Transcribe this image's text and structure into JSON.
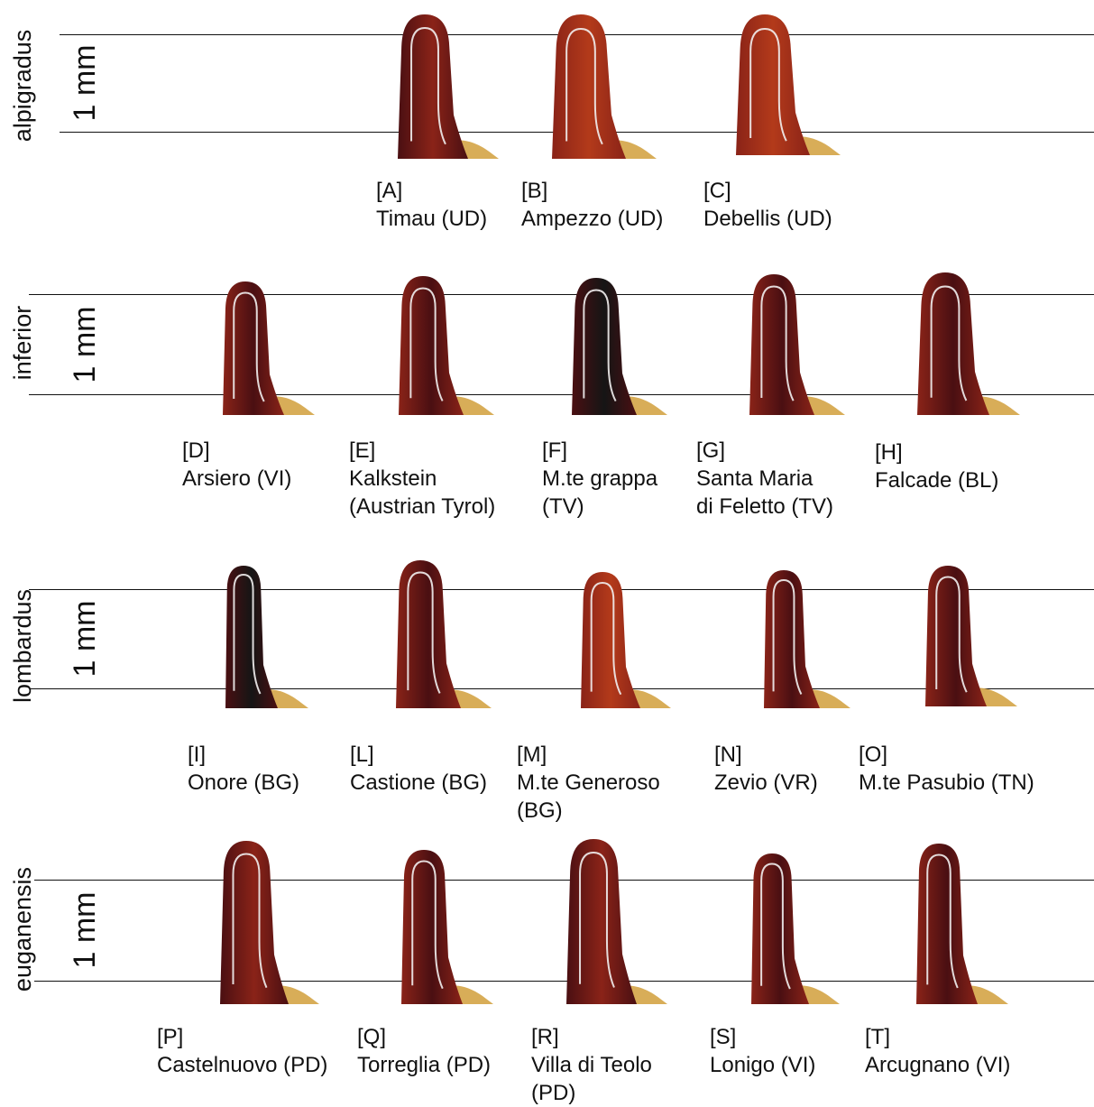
{
  "figure": {
    "colors": {
      "background": "#ffffff",
      "reference_line": "#111111",
      "specimen_dark": "#4a0f12",
      "specimen_mid": "#8a2318",
      "specimen_reddish": "#b33a1a",
      "specimen_black": "#151515",
      "base_tissue": "#d6a94f",
      "highlight": "#f2f0f0"
    },
    "rows": [
      {
        "species": "alpigradus",
        "scale": "1 mm",
        "specimens": [
          {
            "id": "[A]",
            "locality": [
              "Timau (UD)"
            ],
            "tone": "mid"
          },
          {
            "id": "[B]",
            "locality": [
              "Ampezzo (UD)"
            ],
            "tone": "reddish"
          },
          {
            "id": "[C]",
            "locality": [
              "Debellis (UD)"
            ],
            "tone": "reddish"
          }
        ]
      },
      {
        "species": "inferior",
        "scale": "1 mm",
        "specimens": [
          {
            "id": "[D]",
            "locality": [
              "Arsiero (VI)"
            ],
            "tone": "dark"
          },
          {
            "id": "[E]",
            "locality": [
              "Kalkstein",
              "(Austrian Tyrol)"
            ],
            "tone": "dark"
          },
          {
            "id": "[F]",
            "locality": [
              "M.te grappa",
              "(TV)"
            ],
            "tone": "black"
          },
          {
            "id": "[G]",
            "locality": [
              "Santa Maria",
              "di Feletto (TV)"
            ],
            "tone": "dark"
          },
          {
            "id": "[H]",
            "locality": [
              "Falcade (BL)"
            ],
            "tone": "dark"
          }
        ]
      },
      {
        "species": "lombardus",
        "scale": "1 mm",
        "specimens": [
          {
            "id": "[I]",
            "locality": [
              "Onore (BG)"
            ],
            "tone": "black"
          },
          {
            "id": "[L]",
            "locality": [
              "Castione (BG)"
            ],
            "tone": "dark"
          },
          {
            "id": "[M]",
            "locality": [
              "M.te Generoso",
              "(BG)"
            ],
            "tone": "reddish"
          },
          {
            "id": "[N]",
            "locality": [
              "Zevio (VR)"
            ],
            "tone": "dark"
          },
          {
            "id": "[O]",
            "locality": [
              "M.te Pasubio (TN)"
            ],
            "tone": "dark"
          }
        ]
      },
      {
        "species": "euganensis",
        "scale": "1 mm",
        "specimens": [
          {
            "id": "[P]",
            "locality": [
              "Castelnuovo (PD)"
            ],
            "tone": "mid"
          },
          {
            "id": "[Q]",
            "locality": [
              "Torreglia (PD)"
            ],
            "tone": "dark"
          },
          {
            "id": "[R]",
            "locality": [
              "Villa di Teolo",
              "(PD)"
            ],
            "tone": "mid"
          },
          {
            "id": "[S]",
            "locality": [
              "Lonigo (VI)"
            ],
            "tone": "dark"
          },
          {
            "id": "[T]",
            "locality": [
              "Arcugnano (VI)"
            ],
            "tone": "dark"
          }
        ]
      }
    ]
  }
}
